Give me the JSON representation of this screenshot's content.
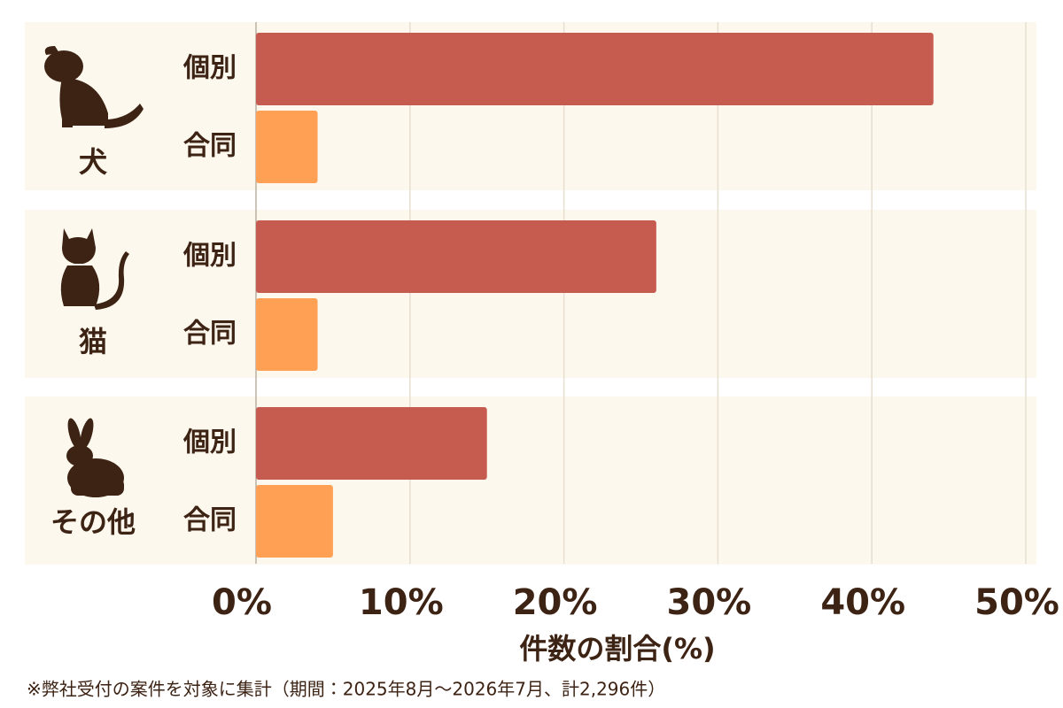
{
  "chart_data": {
    "type": "hbar-grouped",
    "categories": [
      "犬",
      "猫",
      "その他"
    ],
    "series": [
      {
        "name": "個別",
        "color": "#c65c4f",
        "values": [
          44,
          26,
          15
        ]
      },
      {
        "name": "合同",
        "color": "#ffa055",
        "values": [
          4,
          4,
          5
        ]
      }
    ],
    "xlim": [
      0,
      50
    ],
    "xticks": [
      {
        "value": 0,
        "label": "0%"
      },
      {
        "value": 10,
        "label": "10%"
      },
      {
        "value": 20,
        "label": "20%"
      },
      {
        "value": 30,
        "label": "30%"
      },
      {
        "value": 40,
        "label": "40%"
      },
      {
        "value": 50,
        "label": "50%"
      }
    ],
    "x_label": "件数の割合(%)",
    "note": "※弊社受付の案件を対象に集計（期間：2025年8月〜2026年7月、計2,296件）",
    "grid": true
  }
}
